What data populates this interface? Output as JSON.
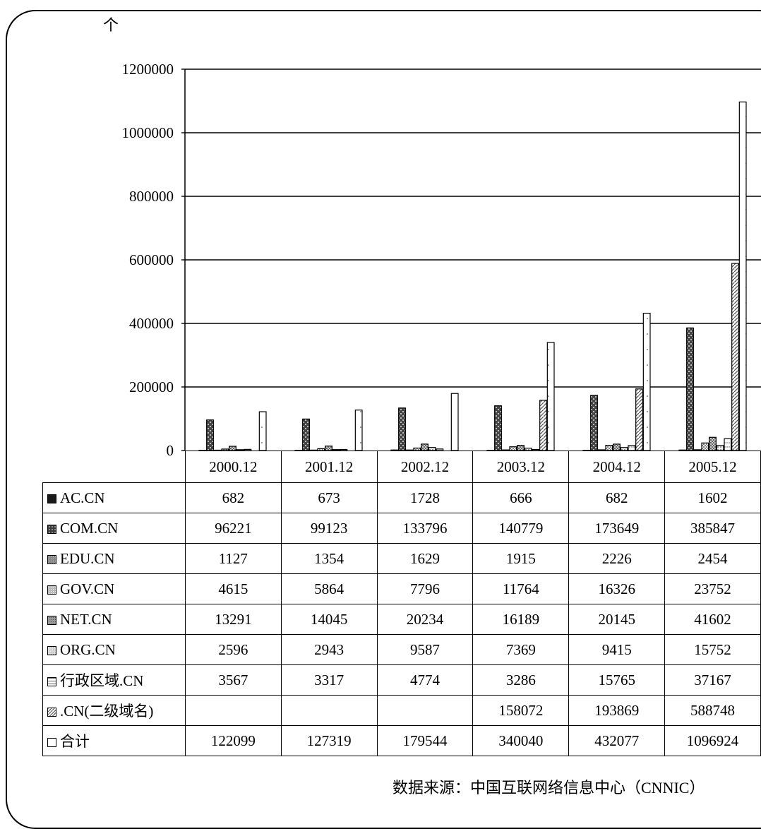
{
  "source": "数据来源：中国互联网络信息中心（CNNIC）",
  "colors": {
    "AC": "#1a1a1a",
    "COM": "#333333",
    "EDU": "#777777",
    "GOV": "#bbbbbb",
    "NET": "#9a9a9a",
    "ORG": "#d0d0d0",
    "REGION": "#ffffff",
    "CN2": "#ffffff",
    "TOTAL": "#ffffff"
  },
  "chart_data": {
    "type": "bar",
    "title": "",
    "ylabel": "个",
    "xlabel": "",
    "ylim": [
      0,
      1200000
    ],
    "yticks": [
      "0",
      "200000",
      "400000",
      "600000",
      "800000",
      "1000000",
      "1200000"
    ],
    "grid": true,
    "legend": "table",
    "categories": [
      "2000.12",
      "2001.12",
      "2002.12",
      "2003.12",
      "2004.12",
      "2005.12"
    ],
    "series": [
      {
        "name": "AC.CN",
        "key": "AC",
        "values": [
          "682",
          "673",
          "1728",
          "666",
          "682",
          "1602"
        ]
      },
      {
        "name": "COM.CN",
        "key": "COM",
        "values": [
          "96221",
          "99123",
          "133796",
          "140779",
          "173649",
          "385847"
        ]
      },
      {
        "name": "EDU.CN",
        "key": "EDU",
        "values": [
          "1127",
          "1354",
          "1629",
          "1915",
          "2226",
          "2454"
        ]
      },
      {
        "name": "GOV.CN",
        "key": "GOV",
        "values": [
          "4615",
          "5864",
          "7796",
          "11764",
          "16326",
          "23752"
        ]
      },
      {
        "name": "NET.CN",
        "key": "NET",
        "values": [
          "13291",
          "14045",
          "20234",
          "16189",
          "20145",
          "41602"
        ]
      },
      {
        "name": "ORG.CN",
        "key": "ORG",
        "values": [
          "2596",
          "2943",
          "9587",
          "7369",
          "9415",
          "15752"
        ]
      },
      {
        "name": "行政区域.CN",
        "key": "REGION",
        "values": [
          "3567",
          "3317",
          "4774",
          "3286",
          "15765",
          "37167"
        ]
      },
      {
        "name": ".CN(二级域名)",
        "key": "CN2",
        "values": [
          "",
          "",
          "",
          "158072",
          "193869",
          "588748"
        ]
      },
      {
        "name": "合计",
        "key": "TOTAL",
        "values": [
          "122099",
          "127319",
          "179544",
          "340040",
          "432077",
          "1096924"
        ]
      }
    ]
  }
}
